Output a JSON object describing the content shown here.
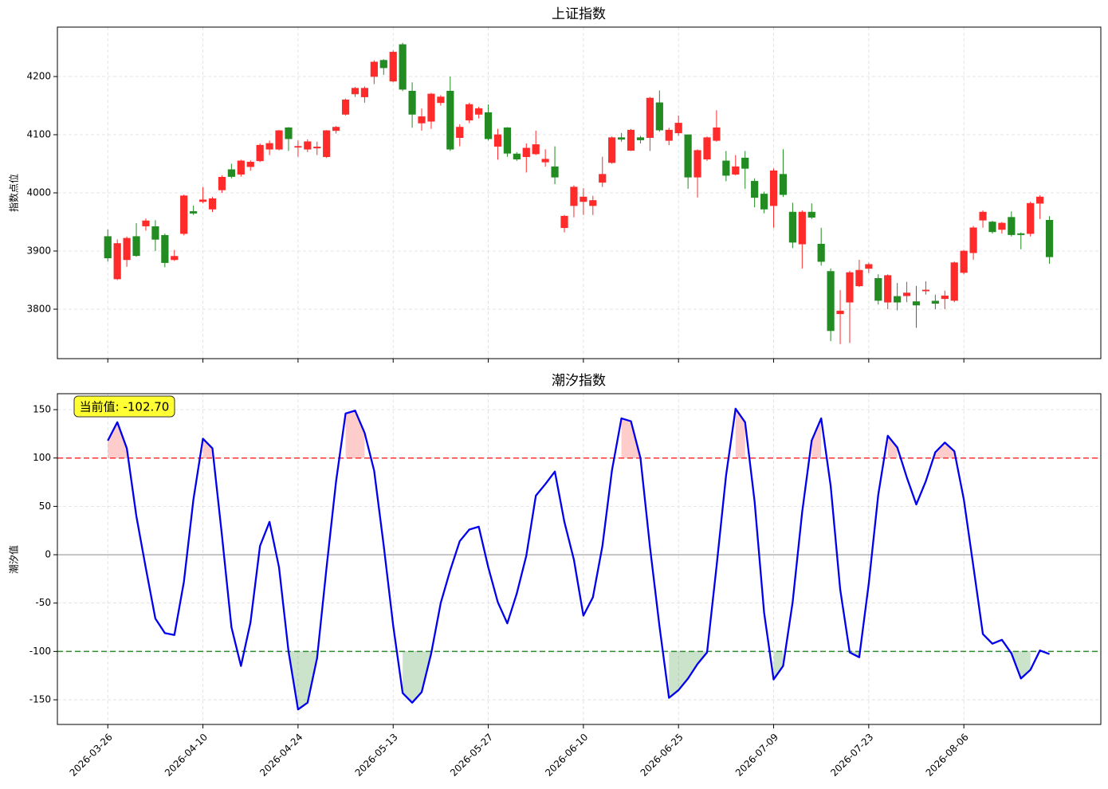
{
  "chart_data": [
    {
      "type": "candlestick",
      "title": "上证指数",
      "ylabel": "指数点位",
      "up_color": "#ff2a2a",
      "down_color": "#228b22",
      "open": [
        3925,
        3852,
        3885,
        3925,
        3943,
        3942,
        3927,
        3885,
        3930,
        3968,
        3985,
        3972,
        4005,
        4040,
        4032,
        4045,
        4055,
        4075,
        4075,
        4112,
        4080,
        4075,
        4077,
        4062,
        4107,
        4135,
        4170,
        4165,
        4200,
        4228,
        4192,
        4255,
        4175,
        4120,
        4123,
        4155,
        4175,
        4095,
        4125,
        4135,
        4138,
        4080,
        4112,
        4067,
        4062,
        4067,
        4053,
        4045,
        3940,
        3978,
        3985,
        3978,
        4018,
        4052,
        4095,
        4073,
        4095,
        4095,
        4155,
        4090,
        4103,
        4100,
        4027,
        4058,
        4090,
        4055,
        4032,
        4060,
        4020,
        3998,
        3978,
        4032,
        3967,
        3912,
        3967,
        3912,
        3865,
        3792,
        3812,
        3840,
        3870,
        3853,
        3812,
        3822,
        3823,
        3813,
        3833,
        3814,
        3818,
        3815,
        3863,
        3897,
        3953,
        3950,
        3937,
        3958,
        3930,
        3930,
        3982,
        3953
      ],
      "high": [
        3937,
        3920,
        3925,
        3948,
        3956,
        3953,
        3930,
        3902,
        3997,
        3978,
        4010,
        3993,
        4030,
        4050,
        4057,
        4056,
        4085,
        4090,
        4108,
        4113,
        4090,
        4092,
        4088,
        4108,
        4115,
        4162,
        4182,
        4183,
        4228,
        4230,
        4245,
        4258,
        4190,
        4145,
        4172,
        4168,
        4200,
        4118,
        4155,
        4148,
        4152,
        4110,
        4113,
        4070,
        4085,
        4107,
        4075,
        4080,
        3962,
        4013,
        4008,
        3995,
        4062,
        4097,
        4103,
        4110,
        4098,
        4165,
        4176,
        4112,
        4133,
        4100,
        4075,
        4097,
        4142,
        4072,
        4065,
        4072,
        4025,
        4002,
        4042,
        4075,
        3983,
        3970,
        3982,
        3940,
        3870,
        3833,
        3866,
        3885,
        3880,
        3860,
        3860,
        3845,
        3847,
        3840,
        3848,
        3825,
        3832,
        3882,
        3902,
        3943,
        3970,
        3952,
        3950,
        3968,
        3932,
        3985,
        3996,
        3960
      ],
      "low": [
        3882,
        3850,
        3873,
        3890,
        3935,
        3900,
        3872,
        3883,
        3927,
        3962,
        3982,
        3967,
        4000,
        4025,
        4028,
        4038,
        4053,
        4065,
        4073,
        4072,
        4062,
        4070,
        4065,
        4060,
        4102,
        4133,
        4165,
        4155,
        4187,
        4203,
        4190,
        4175,
        4112,
        4107,
        4110,
        4150,
        4072,
        4080,
        4120,
        4128,
        4090,
        4057,
        4062,
        4055,
        4035,
        4065,
        4045,
        4015,
        3932,
        3958,
        3962,
        3962,
        4010,
        4050,
        4088,
        4072,
        4085,
        4072,
        4105,
        4082,
        4098,
        4007,
        3992,
        4055,
        4088,
        4020,
        4030,
        4007,
        3975,
        3965,
        3940,
        3993,
        3905,
        3870,
        3955,
        3875,
        3745,
        3740,
        3742,
        3838,
        3862,
        3808,
        3800,
        3798,
        3812,
        3768,
        3825,
        3800,
        3800,
        3812,
        3860,
        3885,
        3940,
        3930,
        3930,
        3925,
        3903,
        3925,
        3955,
        3878
      ],
      "close": [
        3888,
        3913,
        3922,
        3892,
        3952,
        3920,
        3880,
        3891,
        3995,
        3965,
        3988,
        3990,
        4027,
        4028,
        4055,
        4053,
        4082,
        4085,
        4107,
        4093,
        4080,
        4088,
        4079,
        4107,
        4113,
        4160,
        4180,
        4180,
        4225,
        4215,
        4242,
        4178,
        4135,
        4131,
        4170,
        4165,
        4075,
        4113,
        4152,
        4145,
        4093,
        4100,
        4068,
        4058,
        4077,
        4083,
        4058,
        4027,
        3960,
        4010,
        3993,
        3987,
        4032,
        4095,
        4092,
        4108,
        4091,
        4163,
        4108,
        4108,
        4120,
        4027,
        4073,
        4095,
        4112,
        4030,
        4045,
        4042,
        3992,
        3972,
        4038,
        3997,
        3915,
        3967,
        3958,
        3882,
        3763,
        3797,
        3863,
        3867,
        3877,
        3815,
        3858,
        3812,
        3828,
        3807,
        3833,
        3810,
        3823,
        3880,
        3900,
        3940,
        3967,
        3933,
        3948,
        3928,
        3928,
        3982,
        3993,
        3890
      ],
      "xlim": [
        -5.3,
        104.4
      ],
      "ylim": [
        3715,
        4285
      ],
      "yticks": [
        3800,
        3900,
        4000,
        4100,
        4200
      ],
      "grid": true
    },
    {
      "type": "line",
      "title": "潮汐指数",
      "ylabel": "潮汐值",
      "color": "#0000ee",
      "categories": [
        "2026-03-26",
        null,
        null,
        null,
        null,
        null,
        null,
        null,
        null,
        null,
        "2026-04-10",
        null,
        null,
        null,
        null,
        null,
        null,
        null,
        null,
        null,
        "2026-04-24",
        null,
        null,
        null,
        null,
        null,
        null,
        null,
        null,
        null,
        "2026-05-13",
        null,
        null,
        null,
        null,
        null,
        null,
        null,
        null,
        null,
        "2026-05-27",
        null,
        null,
        null,
        null,
        null,
        null,
        null,
        null,
        null,
        "2026-06-10",
        null,
        null,
        null,
        null,
        null,
        null,
        null,
        null,
        null,
        "2026-06-25",
        null,
        null,
        null,
        null,
        null,
        null,
        null,
        null,
        null,
        "2026-07-09",
        null,
        null,
        null,
        null,
        null,
        null,
        null,
        null,
        null,
        "2026-07-23",
        null,
        null,
        null,
        null,
        null,
        null,
        null,
        null,
        null,
        "2026-08-06",
        null,
        null,
        null,
        null,
        null,
        null,
        null,
        null,
        null
      ],
      "values": [
        118,
        137,
        110,
        40,
        -14,
        -66,
        -81,
        -83,
        -28,
        57,
        120,
        110,
        20,
        -75,
        -115,
        -70,
        9,
        34,
        -13,
        -100,
        -160,
        -153,
        -107,
        -13,
        76,
        146,
        149,
        126,
        87,
        10,
        -73,
        -143,
        -153,
        -142,
        -102,
        -50,
        -16,
        14,
        26,
        29,
        -13,
        -49,
        -71,
        -40,
        -1,
        61,
        73,
        86,
        34,
        -5,
        -63,
        -44,
        9,
        87,
        141,
        138,
        100,
        8,
        -74,
        -148,
        -140,
        -128,
        -113,
        -101,
        -12,
        82,
        151,
        137,
        55,
        -60,
        -129,
        -115,
        -49,
        44,
        118,
        141,
        71,
        -36,
        -101,
        -106,
        -30,
        62,
        123,
        111,
        80,
        52,
        76,
        106,
        116,
        107,
        57,
        -12,
        -82,
        -92,
        -88,
        -102,
        -128,
        -119,
        -99,
        -102.7
      ],
      "upper": 100,
      "upper_color": "#ff3333",
      "lower": -100,
      "lower_color": "#2e8b2e",
      "zero": 0,
      "annotation": "当前值: -102.70",
      "xlim": [
        -5.3,
        104.4
      ],
      "ylim": [
        -175.5,
        166.5
      ],
      "yticks": [
        150,
        100,
        50,
        0,
        -50,
        -100,
        -150
      ],
      "grid": true
    }
  ]
}
